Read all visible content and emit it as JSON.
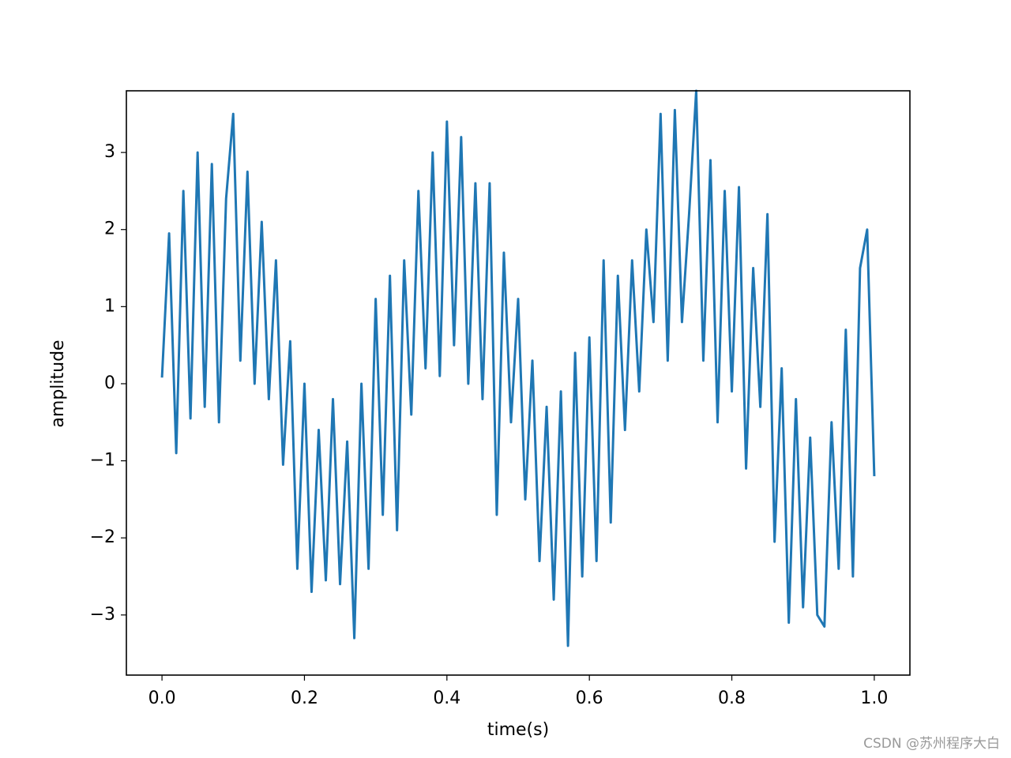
{
  "chart_data": {
    "type": "line",
    "xlabel": "time(s)",
    "ylabel": "amplitude",
    "watermark": "CSDN @苏州程序大白",
    "xlim": [
      -0.05,
      1.05
    ],
    "ylim": [
      -3.78,
      3.8
    ],
    "xticks": [
      {
        "value": 0,
        "label": "0.0"
      },
      0.2,
      0.4,
      0.6,
      0.8,
      {
        "value": 1,
        "label": "1.0"
      }
    ],
    "yticks": [
      {
        "value": -3,
        "label": "−3"
      },
      {
        "value": -2,
        "label": "−2"
      },
      {
        "value": -1,
        "label": "−1"
      },
      0,
      1,
      2,
      3
    ],
    "x": [
      0,
      0.01,
      0.02,
      0.03,
      0.04,
      0.05,
      0.06,
      0.07,
      0.08,
      0.09,
      0.1,
      0.11,
      0.12,
      0.13,
      0.14,
      0.15,
      0.16,
      0.17,
      0.18,
      0.19,
      0.2,
      0.21,
      0.22,
      0.23,
      0.24,
      0.25,
      0.26,
      0.27,
      0.28,
      0.29,
      0.3,
      0.31,
      0.32,
      0.33,
      0.34,
      0.35,
      0.36,
      0.37,
      0.38,
      0.39,
      0.4,
      0.41,
      0.42,
      0.43,
      0.44,
      0.45,
      0.46,
      0.47,
      0.48,
      0.49,
      0.5,
      0.51,
      0.52,
      0.53,
      0.54,
      0.55,
      0.56,
      0.57,
      0.58,
      0.59,
      0.6,
      0.61,
      0.62,
      0.63,
      0.64,
      0.65,
      0.66,
      0.67,
      0.68,
      0.69,
      0.7,
      0.71,
      0.72,
      0.73,
      0.74,
      0.75,
      0.76,
      0.77,
      0.78,
      0.79,
      0.8,
      0.81,
      0.82,
      0.83,
      0.84,
      0.85,
      0.86,
      0.87,
      0.88,
      0.89,
      0.9,
      0.91,
      0.92,
      0.93,
      0.94,
      0.95,
      0.96,
      0.97,
      0.98,
      0.99,
      1
    ],
    "series": [
      {
        "color": "#1f77b4",
        "values": [
          0.08,
          1.95,
          -0.9,
          2.5,
          -0.45,
          3.0,
          -0.3,
          2.85,
          -0.5,
          2.4,
          3.5,
          0.3,
          2.75,
          0.0,
          2.1,
          -0.2,
          1.6,
          -1.05,
          0.55,
          -2.4,
          0.0,
          -2.7,
          -0.6,
          -2.55,
          -0.2,
          -2.6,
          -0.75,
          -3.3,
          0.0,
          -2.4,
          1.1,
          -1.7,
          1.4,
          -1.9,
          1.6,
          -0.4,
          2.5,
          0.2,
          3.0,
          0.1,
          3.4,
          0.5,
          3.2,
          0.0,
          2.6,
          -0.2,
          2.6,
          -1.7,
          1.7,
          -0.5,
          1.1,
          -1.5,
          0.3,
          -2.3,
          -0.3,
          -2.8,
          -0.1,
          -3.4,
          0.4,
          -2.5,
          0.6,
          -2.3,
          1.6,
          -1.8,
          1.4,
          -0.6,
          1.6,
          -0.1,
          2.0,
          0.8,
          3.5,
          0.3,
          3.55,
          0.8,
          2.2,
          3.8,
          0.3,
          2.9,
          -0.5,
          2.5,
          -0.1,
          2.55,
          -1.1,
          1.5,
          -0.3,
          2.2,
          -2.05,
          0.2,
          -3.1,
          -0.2,
          -2.9,
          -0.7,
          -3.0,
          -3.15,
          -0.5,
          -2.4,
          0.7,
          -2.5,
          1.5,
          2.0,
          -1.2
        ]
      }
    ]
  }
}
